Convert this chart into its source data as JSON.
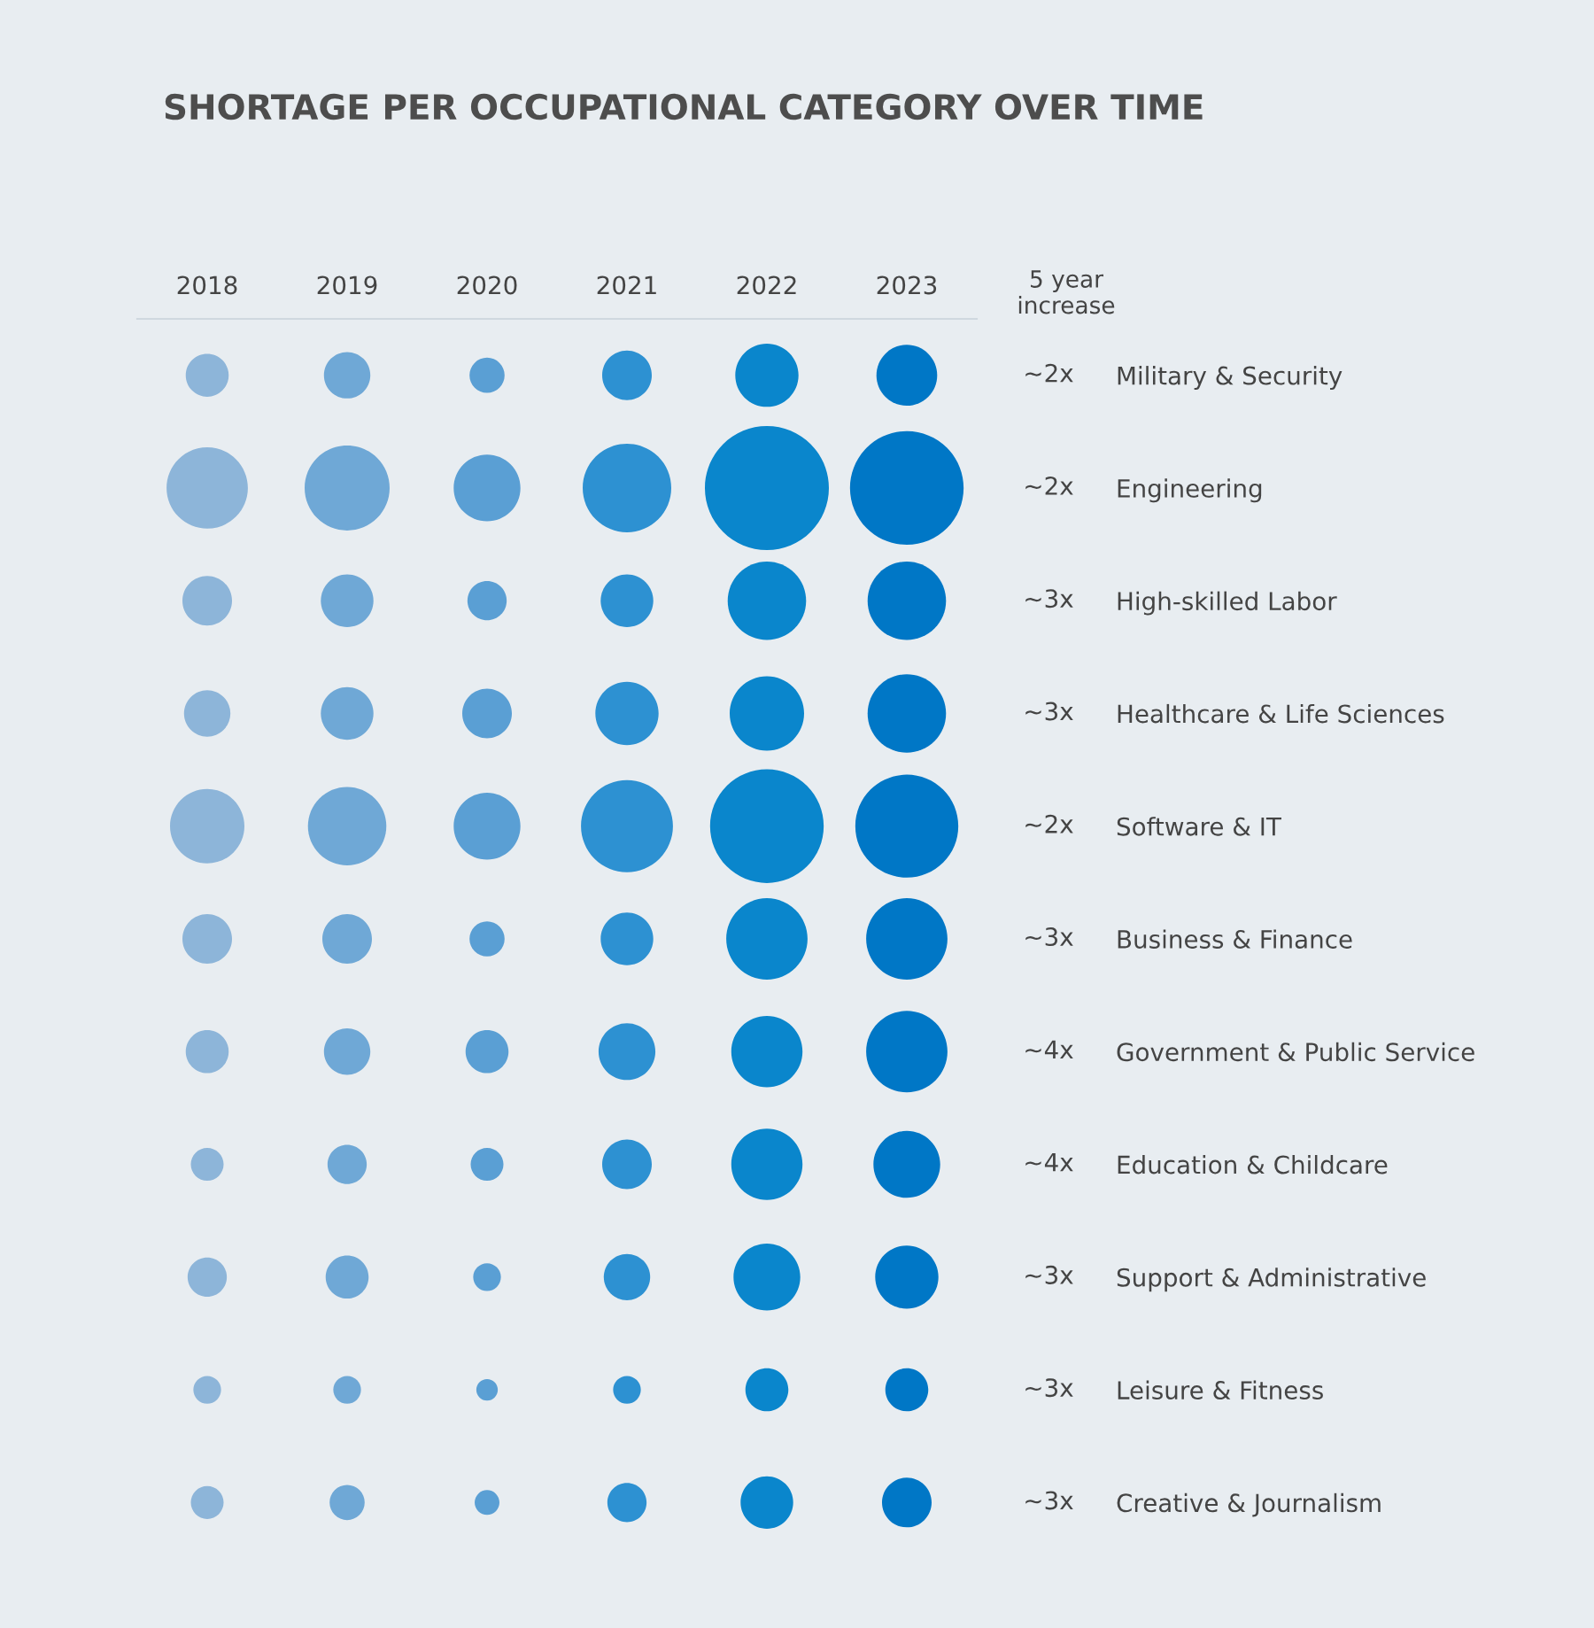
{
  "chart_data": {
    "type": "bubble",
    "title": "SHORTAGE PER OCCUPATIONAL CATEGORY OVER TIME",
    "orientation": "horizontal",
    "categories": [
      "Military & Security",
      "Engineering",
      "High-skilled Labor",
      "Healthcare & Life Sciences",
      "Software & IT",
      "Business & Finance",
      "Government & Public Service",
      "Education & Childcare",
      "Support & Administrative",
      "Leisure & Fitness",
      "Creative & Journalism"
    ],
    "y2_categories": [
      "~2x",
      "~2x",
      "~3x",
      "~3x",
      "~2x",
      "~3x",
      "~4x",
      "~4x",
      "~3x",
      "~3x",
      "~3x"
    ],
    "y2label": "5 year\nincrease",
    "xlim": [
      2017.5,
      2023.5
    ],
    "xticks": [
      2018,
      2019,
      2020,
      2021,
      2022,
      2023
    ],
    "series": [
      {
        "color": "#8db5d9",
        "values": [
          2018,
          2018,
          2018,
          2018,
          2018,
          2018,
          2018,
          2018,
          2018,
          2018,
          2018
        ],
        "sizes": [
          0.12,
          0.43,
          0.16,
          0.14,
          0.36,
          0.16,
          0.12,
          0.07,
          0.1,
          0.05,
          0.07
        ]
      },
      {
        "color": "#6fa8d6",
        "values": [
          2019,
          2019,
          2019,
          2019,
          2019,
          2019,
          2019,
          2019,
          2019,
          2019,
          2019
        ],
        "sizes": [
          0.14,
          0.47,
          0.18,
          0.18,
          0.4,
          0.16,
          0.14,
          0.1,
          0.12,
          0.05,
          0.08
        ]
      },
      {
        "color": "#5a9fd4",
        "values": [
          2020,
          2020,
          2020,
          2020,
          2020,
          2020,
          2020,
          2020,
          2020,
          2020,
          2020
        ],
        "sizes": [
          0.08,
          0.29,
          0.1,
          0.16,
          0.29,
          0.08,
          0.12,
          0.07,
          0.05,
          0.03,
          0.04
        ]
      },
      {
        "color": "#2d91d2",
        "values": [
          2021,
          2021,
          2021,
          2021,
          2021,
          2021,
          2021,
          2021,
          2021,
          2021,
          2021
        ],
        "sizes": [
          0.16,
          0.51,
          0.18,
          0.26,
          0.55,
          0.18,
          0.21,
          0.16,
          0.14,
          0.05,
          0.1
        ]
      },
      {
        "color": "#0a86cc",
        "values": [
          2022,
          2022,
          2022,
          2022,
          2022,
          2022,
          2022,
          2022,
          2022,
          2022,
          2022
        ],
        "sizes": [
          0.26,
          1,
          0.4,
          0.36,
          0.84,
          0.43,
          0.33,
          0.33,
          0.29,
          0.12,
          0.18
        ]
      },
      {
        "color": "#0077c6",
        "values": [
          2023,
          2023,
          2023,
          2023,
          2023,
          2023,
          2023,
          2023,
          2023,
          2023,
          2023
        ],
        "sizes": [
          0.24,
          0.84,
          0.4,
          0.4,
          0.69,
          0.43,
          0.43,
          0.29,
          0.26,
          0.12,
          0.16
        ]
      }
    ]
  }
}
